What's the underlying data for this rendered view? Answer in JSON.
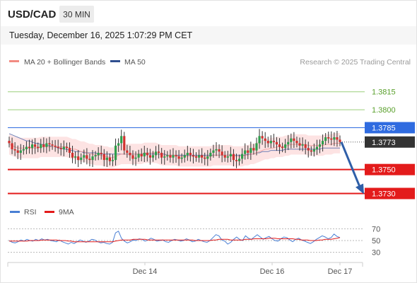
{
  "header": {
    "symbol": "USD/CAD",
    "timeframe": "30 MIN",
    "datetime": "Tuesday, December 16, 2025 1:07:29 PM CET"
  },
  "legend": [
    {
      "label": "MA 20 + Bollinger Bands",
      "color": "#f28b82"
    },
    {
      "label": "MA 50",
      "color": "#2f4f8f"
    }
  ],
  "credit": "Research © 2025 Trading Central",
  "chart_data": [
    {
      "type": "candlestick",
      "title": "USD/CAD",
      "timeframe": "30 MIN",
      "ylim": [
        1.3722,
        1.3832
      ],
      "x_ticks": [
        "Dec 14",
        "Dec 16",
        "Dec 17"
      ],
      "levels": [
        {
          "value": 1.3815,
          "label": "1.3815",
          "kind": "resistance",
          "color": "#9ccf7a",
          "text_color": "#5aa02c"
        },
        {
          "value": 1.38,
          "label": "1.3800",
          "kind": "resistance",
          "color": "#9ccf7a",
          "text_color": "#5aa02c"
        },
        {
          "value": 1.3785,
          "label": "1.3785",
          "kind": "pivot",
          "color": "#2f6be0",
          "text_color": "#ffffff"
        },
        {
          "value": 1.3773,
          "label": "1.3773",
          "kind": "last-price",
          "color": "#333333",
          "text_color": "#ffffff"
        },
        {
          "value": 1.375,
          "label": "1.3750",
          "kind": "support",
          "color": "#e31b1b",
          "text_color": "#ffffff"
        },
        {
          "value": 1.373,
          "label": "1.3730",
          "kind": "support",
          "color": "#e31b1b",
          "text_color": "#ffffff"
        }
      ],
      "last_price": 1.3773,
      "forecast": {
        "from": 1.3773,
        "to": 1.373,
        "direction": "down",
        "color": "#2f5fa8"
      },
      "close_series": [
        1.3772,
        1.3767,
        1.3766,
        1.3764,
        1.3766,
        1.3767,
        1.3769,
        1.3768,
        1.3771,
        1.3769,
        1.3768,
        1.3771,
        1.3769,
        1.3772,
        1.3771,
        1.377,
        1.3769,
        1.3768,
        1.3767,
        1.3769,
        1.3768,
        1.3764,
        1.376,
        1.3761,
        1.3758,
        1.376,
        1.3762,
        1.3759,
        1.3758,
        1.3761,
        1.3762,
        1.3764,
        1.3763,
        1.3758,
        1.376,
        1.3757,
        1.3758,
        1.377,
        1.3772,
        1.3778,
        1.3766,
        1.3764,
        1.3762,
        1.3759,
        1.376,
        1.3763,
        1.3761,
        1.3764,
        1.3762,
        1.376,
        1.3762,
        1.3765,
        1.3764,
        1.376,
        1.3761,
        1.3762,
        1.376,
        1.3762,
        1.3761,
        1.3759,
        1.376,
        1.3762,
        1.3764,
        1.3762,
        1.3761,
        1.376,
        1.3762,
        1.376,
        1.3759,
        1.3761,
        1.3764,
        1.3766,
        1.3767,
        1.3765,
        1.3762,
        1.376,
        1.3761,
        1.3763,
        1.3758,
        1.3757,
        1.3759,
        1.3763,
        1.3766,
        1.3764,
        1.3768,
        1.3766,
        1.3772,
        1.3778,
        1.3776,
        1.3774,
        1.3772,
        1.3774,
        1.3773,
        1.3771,
        1.3769,
        1.3768,
        1.3771,
        1.3773,
        1.3776,
        1.3774,
        1.3772,
        1.377,
        1.3771,
        1.3768,
        1.3766,
        1.3765,
        1.3767,
        1.3769,
        1.3771,
        1.3774,
        1.3777,
        1.3776,
        1.3775,
        1.3777,
        1.3775,
        1.3773
      ],
      "ma20_series": [
        1.3771,
        1.377,
        1.3769,
        1.3768,
        1.3768,
        1.3768,
        1.3768,
        1.3768,
        1.3768,
        1.3768,
        1.3768,
        1.3769,
        1.3769,
        1.3769,
        1.3769,
        1.3769,
        1.3769,
        1.3769,
        1.3769,
        1.3769,
        1.3769,
        1.3768,
        1.3767,
        1.3767,
        1.3766,
        1.3765,
        1.3765,
        1.3764,
        1.3763,
        1.3763,
        1.3762,
        1.3762,
        1.3762,
        1.3761,
        1.3761,
        1.376,
        1.376,
        1.3761,
        1.3762,
        1.3763,
        1.3763,
        1.3763,
        1.3763,
        1.3763,
        1.3763,
        1.3763,
        1.3763,
        1.3764,
        1.3764,
        1.3764,
        1.3764,
        1.3764,
        1.3763,
        1.3762,
        1.3762,
        1.3762,
        1.3762,
        1.3762,
        1.3762,
        1.3761,
        1.3761,
        1.3761,
        1.3761,
        1.3761,
        1.3761,
        1.3761,
        1.3761,
        1.3761,
        1.3761,
        1.3761,
        1.3761,
        1.3762,
        1.3762,
        1.3762,
        1.3762,
        1.3762,
        1.3762,
        1.3762,
        1.3761,
        1.3761,
        1.3761,
        1.3761,
        1.3762,
        1.3762,
        1.3763,
        1.3763,
        1.3764,
        1.3765,
        1.3766,
        1.3767,
        1.3767,
        1.3768,
        1.3768,
        1.3769,
        1.3769,
        1.3769,
        1.377,
        1.377,
        1.3771,
        1.3771,
        1.3771,
        1.3771,
        1.3771,
        1.3771,
        1.377,
        1.377,
        1.377,
        1.377,
        1.377,
        1.377,
        1.3771,
        1.3771,
        1.3771,
        1.3772,
        1.3772,
        1.3772
      ],
      "ma50_series": [
        1.378,
        1.3779,
        1.3778,
        1.3777,
        1.3776,
        1.3775,
        1.3774,
        1.3774,
        1.3773,
        1.3772,
        1.3772,
        1.3771,
        1.3771,
        1.377,
        1.377,
        1.3769,
        1.3769,
        1.3768,
        1.3768,
        1.3767,
        1.3767,
        1.3766,
        1.3766,
        1.3765,
        1.3765,
        1.3765,
        1.3764,
        1.3764,
        1.3764,
        1.3764,
        1.3764,
        1.3763,
        1.3763,
        1.3763,
        1.3763,
        1.3763,
        1.3763,
        1.3763,
        1.3763,
        1.3763,
        1.3763,
        1.3763,
        1.3763,
        1.3763,
        1.3763,
        1.3763,
        1.3763,
        1.3763,
        1.3763,
        1.3763,
        1.3763,
        1.3763,
        1.3763,
        1.3763,
        1.3763,
        1.3762,
        1.3762,
        1.3762,
        1.3762,
        1.3762,
        1.3762,
        1.3762,
        1.3762,
        1.3762,
        1.3762,
        1.3762,
        1.3762,
        1.3762,
        1.3762,
        1.3762,
        1.3762,
        1.3762,
        1.3762,
        1.3762,
        1.3762,
        1.3762,
        1.3762,
        1.3762,
        1.3762,
        1.3762,
        1.3762,
        1.3762,
        1.3762,
        1.3763,
        1.3763,
        1.3763,
        1.3764,
        1.3764,
        1.3765,
        1.3765,
        1.3765,
        1.3766,
        1.3766,
        1.3766,
        1.3766,
        1.3766,
        1.3767,
        1.3767,
        1.3767,
        1.3767,
        1.3767,
        1.3767,
        1.3767,
        1.3767,
        1.3767,
        1.3767,
        1.3767,
        1.3767,
        1.3767,
        1.3768,
        1.3768,
        1.3768,
        1.3768,
        1.3768,
        1.3768,
        1.3768
      ]
    },
    {
      "type": "line",
      "title": "RSI",
      "ylim": [
        20,
        80
      ],
      "y_ticks": [
        70,
        50,
        30
      ],
      "reference_lines": [
        70,
        50,
        30
      ],
      "series": [
        {
          "name": "RSI",
          "color": "#4a7fd4",
          "values": [
            50,
            47,
            46,
            48,
            51,
            49,
            52,
            50,
            49,
            52,
            50,
            53,
            51,
            52,
            50,
            49,
            48,
            51,
            48,
            46,
            44,
            47,
            45,
            48,
            51,
            49,
            47,
            49,
            52,
            51,
            48,
            46,
            47,
            45,
            44,
            47,
            63,
            66,
            54,
            49,
            46,
            48,
            51,
            50,
            53,
            52,
            49,
            51,
            54,
            52,
            49,
            50,
            51,
            48,
            47,
            50,
            52,
            51,
            49,
            50,
            53,
            51,
            48,
            49,
            52,
            50,
            48,
            47,
            50,
            55,
            60,
            58,
            51,
            49,
            44,
            47,
            52,
            56,
            52,
            50,
            58,
            54,
            52,
            56,
            60,
            56,
            52,
            55,
            57,
            53,
            50,
            49,
            53,
            56,
            55,
            51,
            48,
            52,
            54,
            51,
            49,
            47,
            45,
            48,
            52,
            55,
            58,
            56,
            53,
            55,
            61,
            57,
            55
          ]
        },
        {
          "name": "9MA",
          "color": "#e31b1b",
          "values": [
            49,
            49,
            49,
            49,
            49,
            49,
            49,
            50,
            50,
            50,
            50,
            51,
            51,
            51,
            51,
            51,
            51,
            50,
            50,
            50,
            49,
            49,
            48,
            48,
            48,
            48,
            48,
            48,
            48,
            48,
            48,
            48,
            48,
            48,
            48,
            48,
            49,
            50,
            51,
            51,
            51,
            51,
            52,
            52,
            52,
            52,
            52,
            51,
            51,
            51,
            51,
            51,
            51,
            51,
            51,
            51,
            51,
            51,
            51,
            51,
            51,
            51,
            51,
            50,
            50,
            50,
            50,
            50,
            50,
            51,
            51,
            52,
            52,
            52,
            52,
            51,
            51,
            51,
            51,
            51,
            52,
            52,
            52,
            53,
            53,
            53,
            53,
            53,
            54,
            54,
            54,
            53,
            53,
            53,
            53,
            53,
            53,
            52,
            52,
            51,
            51,
            51,
            50,
            50,
            50,
            51,
            51,
            52,
            52,
            52,
            53,
            54,
            55
          ]
        }
      ]
    }
  ]
}
